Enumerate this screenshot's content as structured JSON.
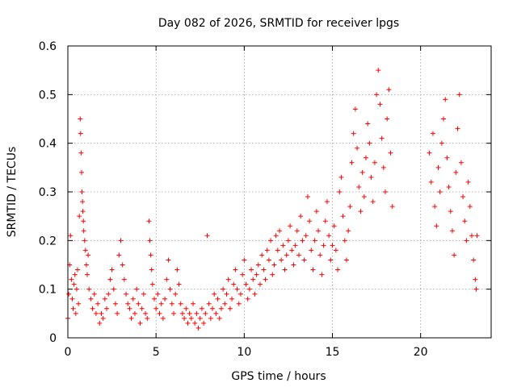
{
  "chart_data": {
    "type": "scatter",
    "title": "Day 082 of 2026, SRMTID for receiver lpgs",
    "xlabel": "GPS time / hours",
    "ylabel": "SRMTID / TECUs",
    "xlim": [
      0,
      24
    ],
    "ylim": [
      0,
      0.6
    ],
    "xticks": [
      0,
      5,
      10,
      15,
      20
    ],
    "xtick_labels": [
      "0",
      "5",
      "10",
      "15",
      "20"
    ],
    "yticks": [
      0,
      0.1,
      0.2,
      0.3,
      0.4,
      0.5,
      0.6
    ],
    "ytick_labels": [
      "0",
      "0.1",
      "0.2",
      "0.3",
      "0.4",
      "0.5",
      "0.6"
    ],
    "grid": true,
    "marker": "plus",
    "color": "#ff0000",
    "series": [
      {
        "name": "lpgs",
        "points": [
          [
            0.0,
            0.04
          ],
          [
            0.05,
            0.09
          ],
          [
            0.1,
            0.15
          ],
          [
            0.15,
            0.21
          ],
          [
            0.2,
            0.12
          ],
          [
            0.25,
            0.08
          ],
          [
            0.3,
            0.06
          ],
          [
            0.35,
            0.11
          ],
          [
            0.4,
            0.13
          ],
          [
            0.45,
            0.05
          ],
          [
            0.5,
            0.1
          ],
          [
            0.55,
            0.14
          ],
          [
            0.6,
            0.07
          ],
          [
            0.65,
            0.25
          ],
          [
            0.7,
            0.45
          ],
          [
            0.72,
            0.42
          ],
          [
            0.75,
            0.38
          ],
          [
            0.78,
            0.34
          ],
          [
            0.8,
            0.3
          ],
          [
            0.83,
            0.28
          ],
          [
            0.85,
            0.26
          ],
          [
            0.88,
            0.24
          ],
          [
            0.9,
            0.22
          ],
          [
            0.95,
            0.2
          ],
          [
            1.0,
            0.18
          ],
          [
            1.05,
            0.15
          ],
          [
            1.1,
            0.13
          ],
          [
            1.15,
            0.17
          ],
          [
            1.2,
            0.1
          ],
          [
            1.3,
            0.08
          ],
          [
            1.4,
            0.06
          ],
          [
            1.5,
            0.09
          ],
          [
            1.6,
            0.05
          ],
          [
            1.7,
            0.07
          ],
          [
            1.8,
            0.03
          ],
          [
            1.9,
            0.05
          ],
          [
            2.0,
            0.04
          ],
          [
            2.1,
            0.08
          ],
          [
            2.2,
            0.06
          ],
          [
            2.3,
            0.09
          ],
          [
            2.4,
            0.12
          ],
          [
            2.5,
            0.14
          ],
          [
            2.6,
            0.1
          ],
          [
            2.7,
            0.07
          ],
          [
            2.8,
            0.05
          ],
          [
            2.9,
            0.17
          ],
          [
            3.0,
            0.2
          ],
          [
            3.1,
            0.15
          ],
          [
            3.2,
            0.12
          ],
          [
            3.3,
            0.09
          ],
          [
            3.4,
            0.07
          ],
          [
            3.5,
            0.06
          ],
          [
            3.6,
            0.04
          ],
          [
            3.7,
            0.08
          ],
          [
            3.8,
            0.05
          ],
          [
            3.9,
            0.1
          ],
          [
            4.0,
            0.07
          ],
          [
            4.1,
            0.03
          ],
          [
            4.2,
            0.06
          ],
          [
            4.3,
            0.09
          ],
          [
            4.4,
            0.05
          ],
          [
            4.5,
            0.04
          ],
          [
            4.6,
            0.24
          ],
          [
            4.65,
            0.2
          ],
          [
            4.7,
            0.17
          ],
          [
            4.75,
            0.14
          ],
          [
            4.8,
            0.11
          ],
          [
            4.9,
            0.08
          ],
          [
            5.0,
            0.06
          ],
          [
            5.1,
            0.09
          ],
          [
            5.2,
            0.05
          ],
          [
            5.3,
            0.07
          ],
          [
            5.4,
            0.04
          ],
          [
            5.5,
            0.08
          ],
          [
            5.6,
            0.12
          ],
          [
            5.7,
            0.16
          ],
          [
            5.8,
            0.1
          ],
          [
            5.9,
            0.07
          ],
          [
            6.0,
            0.05
          ],
          [
            6.1,
            0.09
          ],
          [
            6.2,
            0.14
          ],
          [
            6.3,
            0.11
          ],
          [
            6.4,
            0.07
          ],
          [
            6.5,
            0.05
          ],
          [
            6.6,
            0.04
          ],
          [
            6.7,
            0.06
          ],
          [
            6.8,
            0.03
          ],
          [
            6.9,
            0.05
          ],
          [
            7.0,
            0.04
          ],
          [
            7.1,
            0.07
          ],
          [
            7.2,
            0.03
          ],
          [
            7.3,
            0.05
          ],
          [
            7.4,
            0.02
          ],
          [
            7.5,
            0.04
          ],
          [
            7.6,
            0.06
          ],
          [
            7.7,
            0.03
          ],
          [
            7.8,
            0.05
          ],
          [
            7.9,
            0.21
          ],
          [
            8.0,
            0.07
          ],
          [
            8.1,
            0.04
          ],
          [
            8.2,
            0.06
          ],
          [
            8.3,
            0.09
          ],
          [
            8.4,
            0.05
          ],
          [
            8.5,
            0.08
          ],
          [
            8.6,
            0.04
          ],
          [
            8.7,
            0.06
          ],
          [
            8.8,
            0.1
          ],
          [
            8.9,
            0.07
          ],
          [
            9.0,
            0.09
          ],
          [
            9.1,
            0.12
          ],
          [
            9.2,
            0.06
          ],
          [
            9.3,
            0.08
          ],
          [
            9.4,
            0.11
          ],
          [
            9.5,
            0.14
          ],
          [
            9.6,
            0.1
          ],
          [
            9.7,
            0.07
          ],
          [
            9.8,
            0.09
          ],
          [
            9.9,
            0.13
          ],
          [
            10.0,
            0.16
          ],
          [
            10.1,
            0.11
          ],
          [
            10.2,
            0.08
          ],
          [
            10.3,
            0.1
          ],
          [
            10.4,
            0.14
          ],
          [
            10.5,
            0.12
          ],
          [
            10.6,
            0.09
          ],
          [
            10.7,
            0.13
          ],
          [
            10.8,
            0.15
          ],
          [
            10.9,
            0.11
          ],
          [
            11.0,
            0.17
          ],
          [
            11.1,
            0.14
          ],
          [
            11.2,
            0.12
          ],
          [
            11.3,
            0.18
          ],
          [
            11.4,
            0.16
          ],
          [
            11.5,
            0.2
          ],
          [
            11.6,
            0.13
          ],
          [
            11.7,
            0.15
          ],
          [
            11.8,
            0.21
          ],
          [
            11.9,
            0.18
          ],
          [
            12.0,
            0.22
          ],
          [
            12.1,
            0.16
          ],
          [
            12.2,
            0.19
          ],
          [
            12.3,
            0.14
          ],
          [
            12.4,
            0.17
          ],
          [
            12.5,
            0.2
          ],
          [
            12.6,
            0.23
          ],
          [
            12.7,
            0.18
          ],
          [
            12.8,
            0.15
          ],
          [
            12.9,
            0.19
          ],
          [
            13.0,
            0.22
          ],
          [
            13.1,
            0.17
          ],
          [
            13.2,
            0.25
          ],
          [
            13.3,
            0.2
          ],
          [
            13.4,
            0.16
          ],
          [
            13.5,
            0.21
          ],
          [
            13.6,
            0.29
          ],
          [
            13.7,
            0.24
          ],
          [
            13.8,
            0.18
          ],
          [
            13.9,
            0.14
          ],
          [
            14.0,
            0.2
          ],
          [
            14.1,
            0.26
          ],
          [
            14.2,
            0.22
          ],
          [
            14.3,
            0.17
          ],
          [
            14.4,
            0.13
          ],
          [
            14.5,
            0.19
          ],
          [
            14.6,
            0.24
          ],
          [
            14.7,
            0.28
          ],
          [
            14.8,
            0.21
          ],
          [
            14.9,
            0.16
          ],
          [
            15.0,
            0.19
          ],
          [
            15.1,
            0.23
          ],
          [
            15.2,
            0.18
          ],
          [
            15.3,
            0.14
          ],
          [
            15.4,
            0.3
          ],
          [
            15.5,
            0.33
          ],
          [
            15.6,
            0.25
          ],
          [
            15.7,
            0.2
          ],
          [
            15.8,
            0.16
          ],
          [
            15.9,
            0.22
          ],
          [
            16.0,
            0.27
          ],
          [
            16.1,
            0.36
          ],
          [
            16.2,
            0.42
          ],
          [
            16.3,
            0.47
          ],
          [
            16.4,
            0.39
          ],
          [
            16.5,
            0.31
          ],
          [
            16.6,
            0.26
          ],
          [
            16.7,
            0.34
          ],
          [
            16.8,
            0.29
          ],
          [
            16.9,
            0.37
          ],
          [
            17.0,
            0.44
          ],
          [
            17.1,
            0.4
          ],
          [
            17.2,
            0.33
          ],
          [
            17.3,
            0.28
          ],
          [
            17.4,
            0.36
          ],
          [
            17.5,
            0.5
          ],
          [
            17.6,
            0.55
          ],
          [
            17.7,
            0.48
          ],
          [
            17.8,
            0.41
          ],
          [
            17.9,
            0.35
          ],
          [
            18.0,
            0.3
          ],
          [
            18.1,
            0.45
          ],
          [
            18.2,
            0.51
          ],
          [
            18.3,
            0.38
          ],
          [
            18.4,
            0.27
          ],
          [
            20.5,
            0.38
          ],
          [
            20.6,
            0.32
          ],
          [
            20.7,
            0.42
          ],
          [
            20.8,
            0.27
          ],
          [
            20.9,
            0.23
          ],
          [
            21.0,
            0.35
          ],
          [
            21.1,
            0.3
          ],
          [
            21.2,
            0.4
          ],
          [
            21.3,
            0.45
          ],
          [
            21.4,
            0.49
          ],
          [
            21.5,
            0.37
          ],
          [
            21.6,
            0.31
          ],
          [
            21.7,
            0.26
          ],
          [
            21.8,
            0.22
          ],
          [
            21.9,
            0.17
          ],
          [
            22.0,
            0.34
          ],
          [
            22.1,
            0.43
          ],
          [
            22.2,
            0.5
          ],
          [
            22.3,
            0.36
          ],
          [
            22.4,
            0.29
          ],
          [
            22.5,
            0.24
          ],
          [
            22.6,
            0.2
          ],
          [
            22.7,
            0.32
          ],
          [
            22.8,
            0.27
          ],
          [
            22.9,
            0.21
          ],
          [
            23.0,
            0.16
          ],
          [
            23.1,
            0.12
          ],
          [
            23.15,
            0.1
          ],
          [
            23.2,
            0.21
          ]
        ]
      }
    ]
  }
}
